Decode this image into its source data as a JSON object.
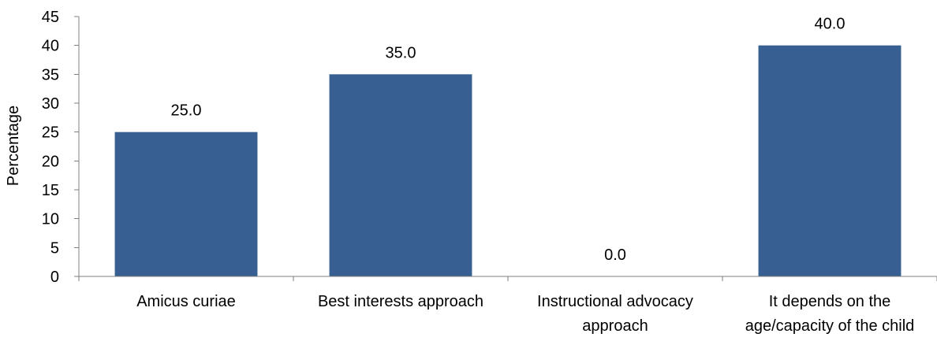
{
  "chart_data": {
    "type": "bar",
    "categories": [
      [
        "Amicus curiae"
      ],
      [
        "Best interests approach"
      ],
      [
        "Instructional advocacy",
        "approach"
      ],
      [
        "It depends on the",
        "age/capacity of the child"
      ]
    ],
    "values": [
      25.0,
      35.0,
      0.0,
      40.0
    ],
    "data_labels": [
      "25.0",
      "35.0",
      "0.0",
      "40.0"
    ],
    "title": "",
    "xlabel": "",
    "ylabel": "Percentage",
    "ylim": [
      0,
      45
    ],
    "yticks": [
      0,
      5,
      10,
      15,
      20,
      25,
      30,
      35,
      40,
      45
    ],
    "bar_color": "#375F91",
    "grid": false,
    "legend": "none"
  }
}
